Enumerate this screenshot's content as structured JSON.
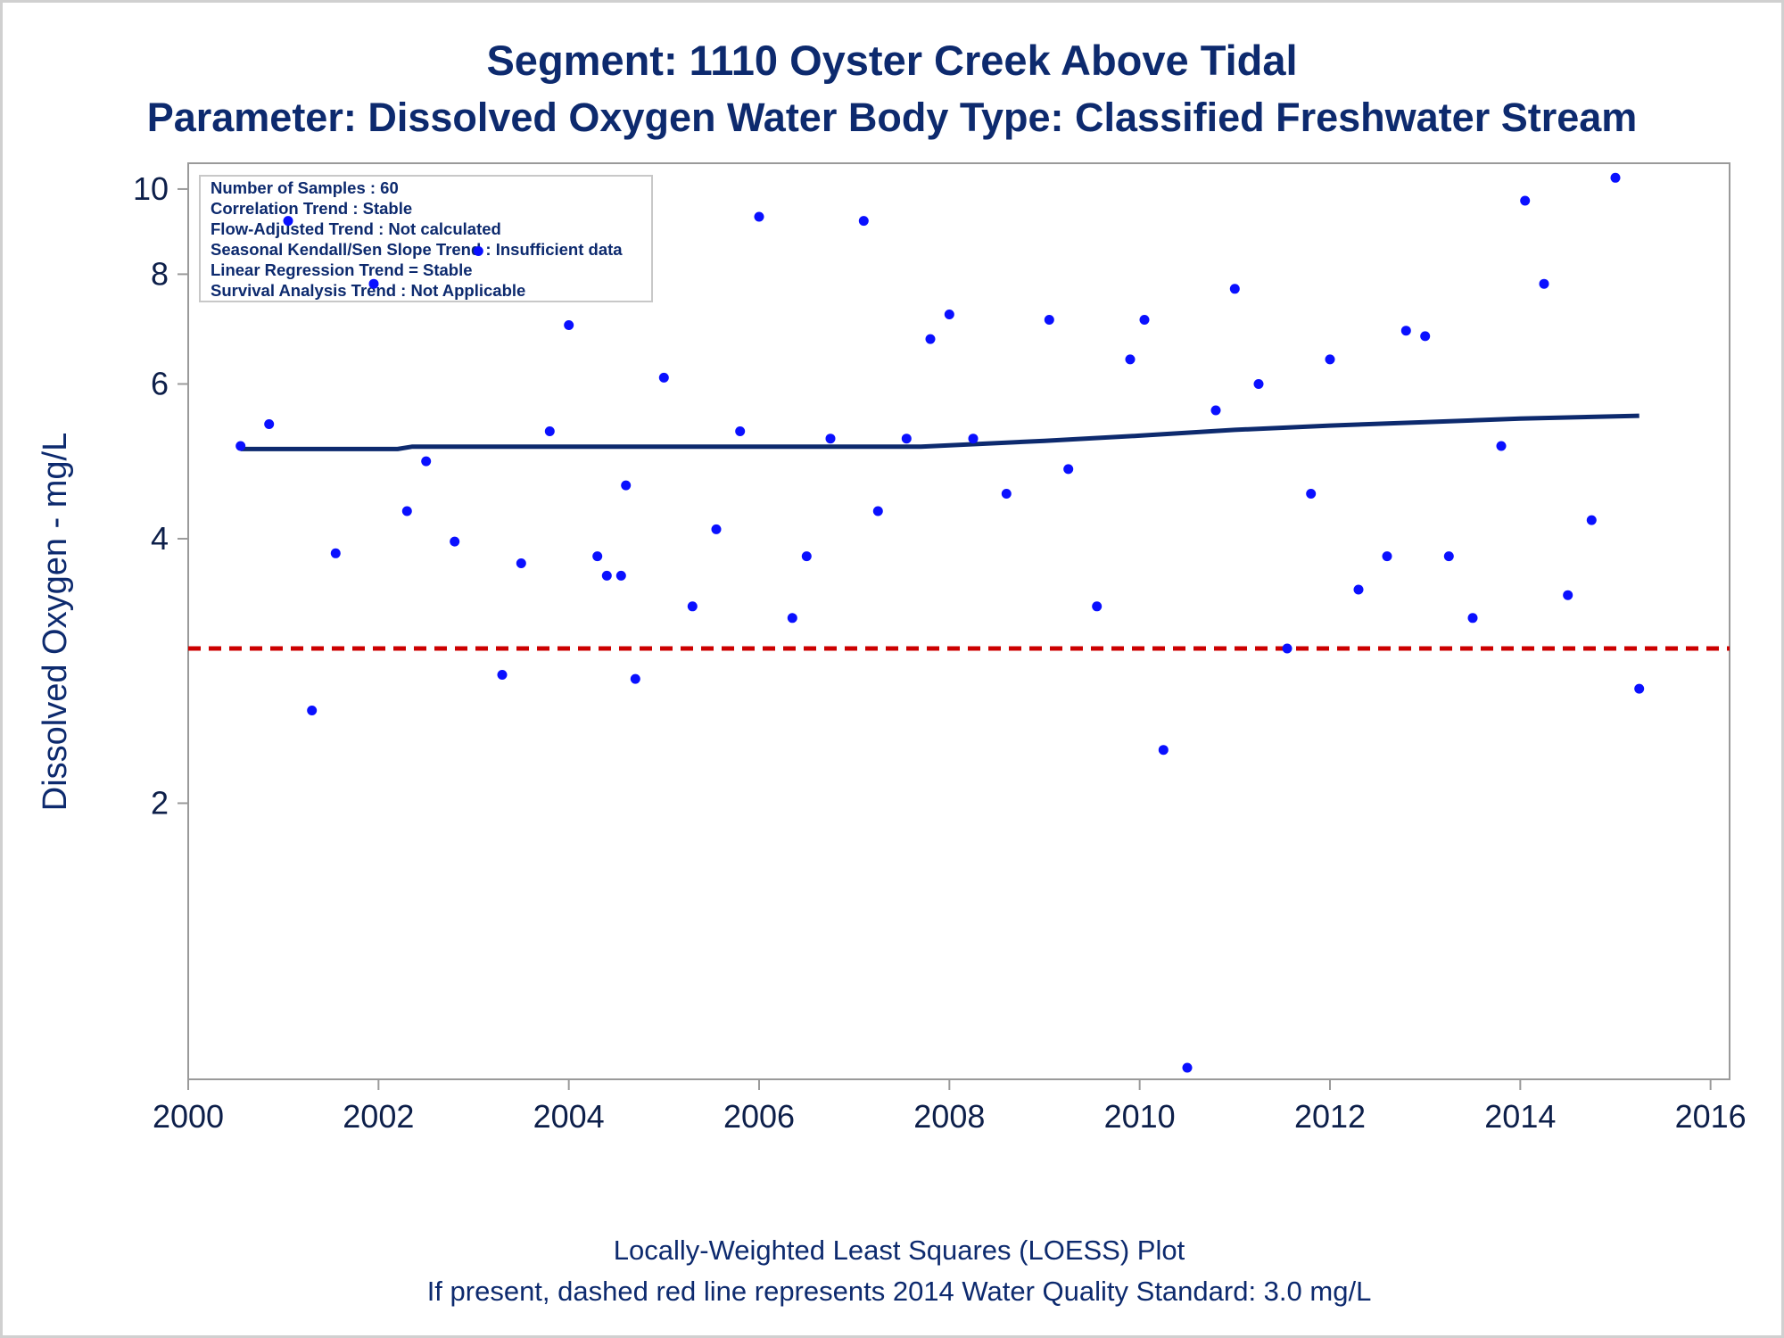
{
  "chart_data": {
    "type": "scatter",
    "title": "Segment: 1110  Oyster Creek Above Tidal",
    "subtitle": "Parameter: Dissolved Oxygen   Water Body Type: Classified Freshwater Stream",
    "xlabel": "",
    "ylabel": "Dissolved Oxygen - mg/L",
    "y_scale": "log",
    "xlim": [
      2000,
      2016.2
    ],
    "ylim": [
      0.97,
      10.7
    ],
    "x_ticks": [
      2000,
      2002,
      2004,
      2006,
      2008,
      2010,
      2012,
      2014,
      2016
    ],
    "y_ticks": [
      2,
      4,
      6,
      8,
      10
    ],
    "grid": false,
    "colors": {
      "points": "#0a10ff",
      "loess": "#0d2a6e",
      "standard": "#cc0000",
      "text": "#0d2a6e",
      "frame": "#9a9a9a"
    },
    "stats_box": [
      "Number of Samples : 60",
      "Correlation Trend : Stable",
      "Flow-Adjusted Trend : Not calculated",
      "Seasonal Kendall/Sen Slope Trend : Insufficient data",
      "Linear Regression Trend = Stable",
      "Survival Analysis Trend : Not Applicable"
    ],
    "standard_line": {
      "value": 3.0
    },
    "series": [
      {
        "type": "scatter",
        "points": [
          {
            "x": 2000.55,
            "y": 5.1
          },
          {
            "x": 2000.85,
            "y": 5.4
          },
          {
            "x": 2001.05,
            "y": 9.2
          },
          {
            "x": 2001.3,
            "y": 2.55
          },
          {
            "x": 2001.55,
            "y": 3.85
          },
          {
            "x": 2001.95,
            "y": 7.8
          },
          {
            "x": 2002.3,
            "y": 4.3
          },
          {
            "x": 2002.5,
            "y": 4.9
          },
          {
            "x": 2002.8,
            "y": 3.97
          },
          {
            "x": 2003.05,
            "y": 8.5
          },
          {
            "x": 2003.3,
            "y": 2.8
          },
          {
            "x": 2003.5,
            "y": 3.75
          },
          {
            "x": 2003.8,
            "y": 5.3
          },
          {
            "x": 2004.0,
            "y": 7.0
          },
          {
            "x": 2004.3,
            "y": 3.82
          },
          {
            "x": 2004.4,
            "y": 3.63
          },
          {
            "x": 2004.55,
            "y": 3.63
          },
          {
            "x": 2004.6,
            "y": 4.6
          },
          {
            "x": 2004.7,
            "y": 2.77
          },
          {
            "x": 2005.0,
            "y": 6.1
          },
          {
            "x": 2005.3,
            "y": 3.35
          },
          {
            "x": 2005.55,
            "y": 4.1
          },
          {
            "x": 2005.8,
            "y": 5.3
          },
          {
            "x": 2006.0,
            "y": 9.3
          },
          {
            "x": 2006.35,
            "y": 3.25
          },
          {
            "x": 2006.5,
            "y": 3.82
          },
          {
            "x": 2006.75,
            "y": 5.2
          },
          {
            "x": 2007.1,
            "y": 9.2
          },
          {
            "x": 2007.25,
            "y": 4.3
          },
          {
            "x": 2007.55,
            "y": 5.2
          },
          {
            "x": 2007.8,
            "y": 6.75
          },
          {
            "x": 2008.0,
            "y": 7.2
          },
          {
            "x": 2008.25,
            "y": 5.2
          },
          {
            "x": 2008.6,
            "y": 4.5
          },
          {
            "x": 2009.05,
            "y": 7.1
          },
          {
            "x": 2009.25,
            "y": 4.8
          },
          {
            "x": 2009.55,
            "y": 3.35
          },
          {
            "x": 2009.9,
            "y": 6.4
          },
          {
            "x": 2010.05,
            "y": 7.1
          },
          {
            "x": 2010.25,
            "y": 2.3
          },
          {
            "x": 2010.5,
            "y": 1.0
          },
          {
            "x": 2010.8,
            "y": 5.6
          },
          {
            "x": 2011.0,
            "y": 7.7
          },
          {
            "x": 2011.25,
            "y": 6.0
          },
          {
            "x": 2011.55,
            "y": 3.0
          },
          {
            "x": 2011.8,
            "y": 4.5
          },
          {
            "x": 2012.0,
            "y": 6.4
          },
          {
            "x": 2012.3,
            "y": 3.5
          },
          {
            "x": 2012.6,
            "y": 3.82
          },
          {
            "x": 2012.8,
            "y": 6.9
          },
          {
            "x": 2013.0,
            "y": 6.8
          },
          {
            "x": 2013.25,
            "y": 3.82
          },
          {
            "x": 2013.5,
            "y": 3.25
          },
          {
            "x": 2013.8,
            "y": 5.1
          },
          {
            "x": 2014.05,
            "y": 9.7
          },
          {
            "x": 2014.25,
            "y": 7.8
          },
          {
            "x": 2014.5,
            "y": 3.45
          },
          {
            "x": 2014.75,
            "y": 4.2
          },
          {
            "x": 2015.0,
            "y": 10.3
          },
          {
            "x": 2015.25,
            "y": 2.7
          }
        ]
      },
      {
        "type": "line",
        "points": [
          {
            "x": 2000.55,
            "y": 5.06
          },
          {
            "x": 2002.2,
            "y": 5.06
          },
          {
            "x": 2002.35,
            "y": 5.09
          },
          {
            "x": 2007.7,
            "y": 5.09
          },
          {
            "x": 2008.0,
            "y": 5.11
          },
          {
            "x": 2009.0,
            "y": 5.17
          },
          {
            "x": 2010.0,
            "y": 5.24
          },
          {
            "x": 2011.0,
            "y": 5.32
          },
          {
            "x": 2012.0,
            "y": 5.38
          },
          {
            "x": 2013.0,
            "y": 5.43
          },
          {
            "x": 2014.0,
            "y": 5.48
          },
          {
            "x": 2015.25,
            "y": 5.52
          }
        ]
      }
    ]
  },
  "footnotes": [
    "Locally-Weighted Least Squares (LOESS) Plot",
    "If present, dashed red line represents 2014 Water Quality Standard: 3.0 mg/L"
  ]
}
